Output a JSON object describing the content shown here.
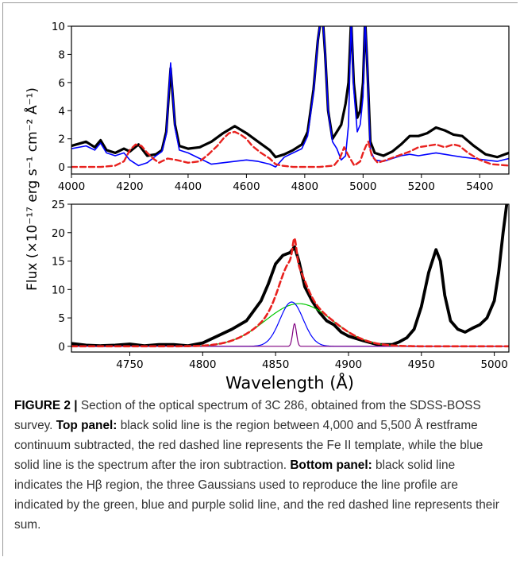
{
  "caption": {
    "label": "FIGURE 2 |",
    "intro": " Section of the optical spectrum of 3C 286, obtained from the SDSS-BOSS survey. ",
    "top_heading": "Top panel:",
    "top_text": " black solid line is the region between 4,000 and 5,500 Å restframe continuum subtracted, the red dashed line represents the Fe II template, while the blue solid line is the spectrum after the iron subtraction. ",
    "bottom_heading": "Bottom panel:",
    "bottom_text": " black solid line indicates the Hβ region, the three Gaussians used to reproduce the line profile are indicated by the green, blue and purple solid line, and the red dashed line represents their sum."
  },
  "chart_data": [
    {
      "type": "line",
      "panel": "top",
      "xlim": [
        4000,
        5500
      ],
      "ylim": [
        -0.5,
        10
      ],
      "x_ticks": [
        4000,
        4200,
        4400,
        4600,
        4800,
        5000,
        5200,
        5400
      ],
      "y_ticks": [
        0,
        2,
        4,
        6,
        8,
        10
      ],
      "grid": false,
      "series": [
        {
          "role": "spectrum_continuum_subtracted",
          "color": "#000000",
          "style": "solid",
          "x": [
            4000,
            4050,
            4080,
            4100,
            4120,
            4150,
            4180,
            4200,
            4230,
            4260,
            4290,
            4310,
            4325,
            4340,
            4355,
            4370,
            4400,
            4440,
            4480,
            4520,
            4560,
            4600,
            4640,
            4680,
            4700,
            4730,
            4760,
            4790,
            4810,
            4830,
            4845,
            4855,
            4862,
            4870,
            4880,
            4895,
            4910,
            4925,
            4940,
            4950,
            4959,
            4968,
            4980,
            4990,
            5000,
            5007,
            5015,
            5025,
            5040,
            5070,
            5100,
            5130,
            5160,
            5190,
            5220,
            5250,
            5280,
            5310,
            5340,
            5380,
            5420,
            5460,
            5500
          ],
          "y": [
            1.5,
            1.8,
            1.4,
            1.9,
            1.2,
            1.0,
            1.3,
            1.1,
            1.6,
            0.8,
            0.9,
            1.2,
            2.5,
            7.0,
            3.0,
            1.5,
            1.3,
            1.4,
            1.8,
            2.4,
            2.9,
            2.4,
            1.8,
            1.2,
            0.7,
            0.9,
            1.2,
            1.6,
            2.5,
            5.5,
            9.0,
            10.5,
            10.5,
            8.0,
            4.0,
            2.0,
            2.5,
            3.0,
            4.5,
            6.0,
            10.5,
            6.0,
            3.5,
            4.0,
            6.0,
            10.5,
            7.0,
            1.8,
            1.0,
            0.8,
            1.1,
            1.6,
            2.2,
            2.2,
            2.4,
            2.8,
            2.6,
            2.3,
            2.2,
            1.5,
            0.9,
            0.7,
            1.0
          ]
        },
        {
          "role": "spectrum_iron_subtracted",
          "color": "#0000ff",
          "style": "solid",
          "x": [
            4000,
            4050,
            4080,
            4100,
            4120,
            4150,
            4180,
            4200,
            4230,
            4260,
            4290,
            4310,
            4325,
            4340,
            4355,
            4370,
            4400,
            4440,
            4480,
            4520,
            4560,
            4600,
            4640,
            4680,
            4700,
            4730,
            4760,
            4790,
            4810,
            4830,
            4845,
            4855,
            4862,
            4870,
            4880,
            4895,
            4910,
            4925,
            4940,
            4950,
            4959,
            4968,
            4980,
            4990,
            5000,
            5007,
            5015,
            5025,
            5040,
            5070,
            5100,
            5130,
            5160,
            5190,
            5220,
            5250,
            5280,
            5310,
            5340,
            5380,
            5420,
            5460,
            5500
          ],
          "y": [
            1.3,
            1.5,
            1.2,
            1.7,
            1.0,
            0.8,
            1.0,
            0.5,
            0.1,
            0.3,
            0.8,
            1.1,
            2.3,
            7.4,
            2.8,
            1.2,
            1.0,
            0.6,
            0.2,
            0.3,
            0.4,
            0.5,
            0.4,
            0.2,
            0.0,
            0.7,
            1.0,
            1.3,
            2.2,
            5.3,
            9.0,
            10.5,
            10.5,
            8.0,
            4.0,
            1.8,
            1.3,
            0.5,
            0.8,
            3.0,
            10.5,
            5.5,
            2.5,
            3.0,
            5.0,
            10.5,
            7.0,
            1.2,
            0.5,
            0.4,
            0.6,
            0.8,
            0.9,
            0.8,
            0.9,
            1.0,
            0.9,
            0.8,
            0.7,
            0.6,
            0.5,
            0.4,
            0.6
          ]
        },
        {
          "role": "fe_ii_template",
          "color": "#e8211e",
          "style": "dashed",
          "x": [
            4000,
            4100,
            4150,
            4180,
            4200,
            4220,
            4240,
            4260,
            4280,
            4300,
            4330,
            4360,
            4400,
            4440,
            4470,
            4500,
            4520,
            4540,
            4560,
            4580,
            4600,
            4620,
            4650,
            4680,
            4700,
            4720,
            4760,
            4800,
            4850,
            4900,
            4920,
            4935,
            4950,
            4970,
            4990,
            5000,
            5010,
            5018,
            5030,
            5050,
            5080,
            5120,
            5160,
            5190,
            5220,
            5250,
            5280,
            5310,
            5330,
            5360,
            5400,
            5440,
            5500
          ],
          "y": [
            0,
            0,
            0.1,
            0.4,
            1.2,
            1.6,
            1.5,
            1.0,
            0.6,
            0.3,
            0.6,
            0.5,
            0.3,
            0.4,
            0.9,
            1.5,
            2.0,
            2.4,
            2.5,
            2.3,
            2.0,
            1.5,
            1.0,
            0.6,
            0.2,
            0.1,
            0,
            0,
            0,
            0.1,
            0.6,
            1.4,
            0.8,
            0.1,
            0.4,
            1.0,
            1.5,
            1.8,
            0.8,
            0.3,
            0.5,
            0.8,
            1.1,
            1.4,
            1.5,
            1.6,
            1.4,
            1.6,
            1.5,
            1.0,
            0.5,
            0.2,
            0.1
          ]
        }
      ]
    },
    {
      "type": "line",
      "panel": "bottom",
      "xlabel": "Wavelength (Å)",
      "ylabel": "Flux (×10⁻¹⁷ erg s⁻¹ cm⁻² Å⁻¹)",
      "xlim": [
        4710,
        5010
      ],
      "ylim": [
        -1,
        25
      ],
      "x_ticks": [
        4750,
        4800,
        4850,
        4900,
        4950,
        5000
      ],
      "y_ticks": [
        0,
        5,
        10,
        15,
        20,
        25
      ],
      "grid": false,
      "series": [
        {
          "role": "h_beta_region",
          "color": "#000000",
          "style": "solid",
          "x": [
            4710,
            4720,
            4730,
            4740,
            4750,
            4760,
            4770,
            4780,
            4790,
            4800,
            4810,
            4820,
            4830,
            4840,
            4845,
            4850,
            4855,
            4860,
            4863,
            4866,
            4870,
            4875,
            4880,
            4885,
            4890,
            4895,
            4900,
            4910,
            4920,
            4930,
            4935,
            4940,
            4945,
            4950,
            4955,
            4960,
            4963,
            4966,
            4970,
            4975,
            4980,
            4985,
            4990,
            4995,
            5000,
            5003,
            5006,
            5009
          ],
          "y": [
            0.5,
            0.2,
            0.1,
            0.2,
            0.4,
            0.1,
            0.3,
            0.3,
            0.1,
            0.6,
            1.8,
            3.0,
            4.5,
            8.0,
            11.0,
            14.5,
            16.0,
            16.5,
            17.5,
            15.0,
            10.5,
            8.0,
            6.0,
            4.5,
            3.8,
            2.5,
            1.8,
            1.0,
            0.3,
            0.3,
            0.8,
            1.5,
            3.0,
            7.0,
            13.0,
            17.0,
            15.0,
            9.0,
            4.5,
            3.0,
            2.5,
            3.2,
            3.8,
            5.0,
            8.0,
            13.0,
            20.0,
            26.0
          ]
        },
        {
          "role": "gaussian_broad",
          "color": "#00c800",
          "style": "solid",
          "center": 4866,
          "sigma": 23,
          "amplitude": 7.5
        },
        {
          "role": "gaussian_intermediate",
          "color": "#0000ff",
          "style": "solid",
          "center": 4861,
          "sigma": 8,
          "amplitude": 7.8
        },
        {
          "role": "gaussian_narrow",
          "color": "#800080",
          "style": "solid",
          "center": 4863,
          "sigma": 1.3,
          "amplitude": 4.0
        },
        {
          "role": "gaussian_sum",
          "color": "#e8211e",
          "style": "dashed",
          "sum_of": [
            "gaussian_broad",
            "gaussian_intermediate",
            "gaussian_narrow"
          ]
        }
      ]
    }
  ]
}
